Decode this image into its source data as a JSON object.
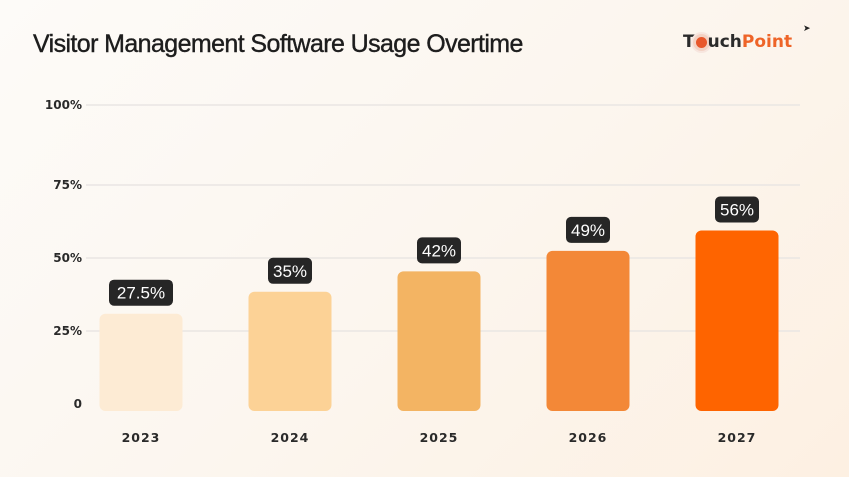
{
  "header": {
    "title": "Visitor Management Software Usage Overtime",
    "logo": {
      "part1_a": "T",
      "part1_b": "uch",
      "part2": "Point",
      "icon": "touch-pointer-icon"
    }
  },
  "colors": {
    "gridline": "#e9e6e3",
    "label_bg": "#262626",
    "brand_orange": "#ee6428"
  },
  "chart_data": {
    "type": "bar",
    "title": "Visitor Management Software Usage Overtime",
    "xlabel": "",
    "ylabel": "",
    "categories": [
      "2023",
      "2024",
      "2025",
      "2026",
      "2027"
    ],
    "values": [
      27.5,
      35,
      42,
      49,
      56
    ],
    "value_labels": [
      "27.5%",
      "35%",
      "42%",
      "49%",
      "56%"
    ],
    "bar_colors": [
      "#fdebd4",
      "#fcd296",
      "#f3b463",
      "#f38837",
      "#fe6400"
    ],
    "yticks": [
      0,
      25,
      50,
      75,
      100
    ],
    "ytick_labels": [
      "0",
      "25%",
      "50%",
      "75%",
      "100%"
    ],
    "ylim": [
      0,
      100
    ],
    "grid": true,
    "legend": "none"
  }
}
